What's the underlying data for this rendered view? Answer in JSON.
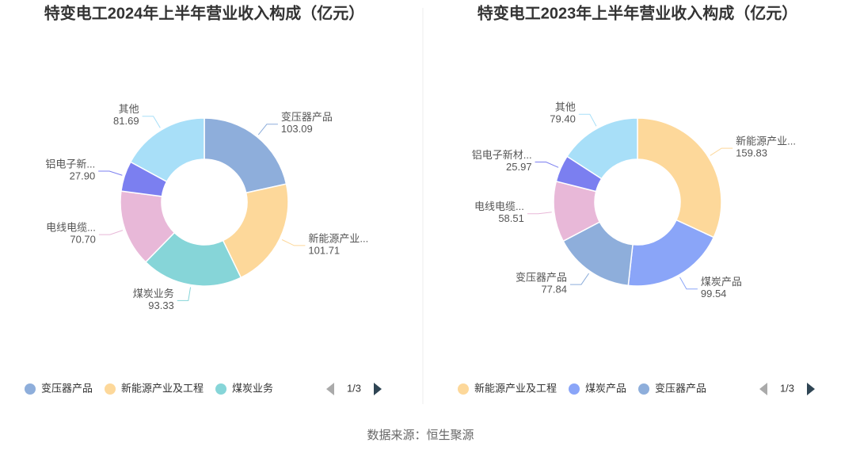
{
  "chart_data": [
    {
      "type": "donut",
      "title": "特变电工2024年上半年营业收入构成（亿元）",
      "categories": [
        "变压器产品",
        "新能源产业...",
        "煤炭业务",
        "电线电缆...",
        "铝电子新...",
        "其他"
      ],
      "values": [
        103.09,
        101.71,
        93.33,
        70.7,
        27.9,
        81.69
      ],
      "value_labels": [
        "103.09",
        "101.71",
        "93.33",
        "70.70",
        "27.90",
        "81.69"
      ],
      "colors": [
        "#8eaedb",
        "#fdd89a",
        "#86d5d8",
        "#e8b8d8",
        "#7b7ff0",
        "#a8dff8"
      ],
      "legend": [
        "变压器产品",
        "新能源产业及工程",
        "煤炭业务"
      ],
      "legend_page": "1/3"
    },
    {
      "type": "donut",
      "title": "特变电工2023年上半年营业收入构成（亿元）",
      "categories": [
        "新能源产业...",
        "煤炭产品",
        "变压器产品",
        "电线电缆...",
        "铝电子新材...",
        "其他"
      ],
      "values": [
        159.83,
        99.54,
        77.84,
        58.51,
        25.97,
        79.4
      ],
      "value_labels": [
        "159.83",
        "99.54",
        "77.84",
        "58.51",
        "25.97",
        "79.40"
      ],
      "colors": [
        "#fdd89a",
        "#8aa5f8",
        "#8eaedb",
        "#e8b8d8",
        "#7b7ff0",
        "#a8dff8"
      ],
      "legend": [
        "新能源产业及工程",
        "煤炭产品",
        "变压器产品"
      ],
      "legend_page": "1/3"
    }
  ],
  "source": "数据来源：恒生聚源"
}
